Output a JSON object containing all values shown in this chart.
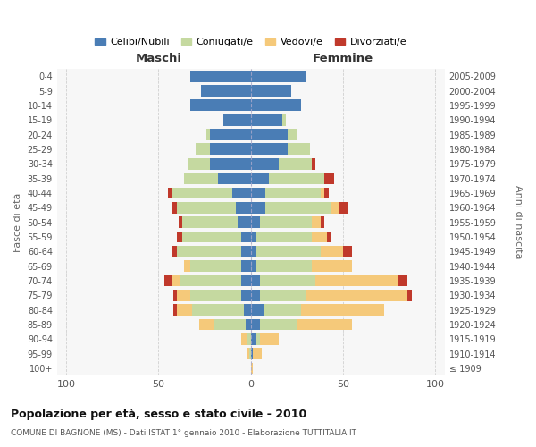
{
  "age_groups": [
    "100+",
    "95-99",
    "90-94",
    "85-89",
    "80-84",
    "75-79",
    "70-74",
    "65-69",
    "60-64",
    "55-59",
    "50-54",
    "45-49",
    "40-44",
    "35-39",
    "30-34",
    "25-29",
    "20-24",
    "15-19",
    "10-14",
    "5-9",
    "0-4"
  ],
  "birth_years": [
    "≤ 1909",
    "1910-1914",
    "1915-1919",
    "1920-1924",
    "1925-1929",
    "1930-1934",
    "1935-1939",
    "1940-1944",
    "1945-1949",
    "1950-1954",
    "1955-1959",
    "1960-1964",
    "1965-1969",
    "1970-1974",
    "1975-1979",
    "1980-1984",
    "1985-1989",
    "1990-1994",
    "1995-1999",
    "2000-2004",
    "2005-2009"
  ],
  "male_celibe": [
    0,
    0,
    0,
    3,
    4,
    5,
    5,
    5,
    5,
    5,
    7,
    8,
    10,
    18,
    22,
    22,
    22,
    15,
    33,
    27,
    33
  ],
  "male_coniugato": [
    0,
    1,
    2,
    17,
    28,
    28,
    33,
    28,
    35,
    32,
    30,
    32,
    33,
    18,
    12,
    8,
    2,
    0,
    0,
    0,
    0
  ],
  "male_vedovo": [
    0,
    1,
    3,
    8,
    8,
    7,
    5,
    3,
    0,
    0,
    0,
    0,
    0,
    0,
    0,
    0,
    0,
    0,
    0,
    0,
    0
  ],
  "male_divorziato": [
    0,
    0,
    0,
    0,
    2,
    2,
    4,
    0,
    3,
    3,
    2,
    3,
    2,
    0,
    0,
    0,
    0,
    0,
    0,
    0,
    0
  ],
  "female_celibe": [
    0,
    1,
    3,
    5,
    7,
    5,
    5,
    3,
    3,
    3,
    5,
    8,
    8,
    10,
    15,
    20,
    20,
    17,
    27,
    22,
    30
  ],
  "female_coniugata": [
    0,
    0,
    2,
    20,
    20,
    25,
    30,
    30,
    35,
    30,
    28,
    35,
    30,
    30,
    18,
    12,
    5,
    2,
    0,
    0,
    0
  ],
  "female_vedova": [
    1,
    5,
    10,
    30,
    45,
    55,
    45,
    22,
    12,
    8,
    5,
    5,
    2,
    0,
    0,
    0,
    0,
    0,
    0,
    0,
    0
  ],
  "female_divorziata": [
    0,
    0,
    0,
    0,
    0,
    2,
    5,
    0,
    5,
    2,
    2,
    5,
    2,
    5,
    2,
    0,
    0,
    0,
    0,
    0,
    0
  ],
  "color_celibe": "#4a7db5",
  "color_coniugato": "#c5d9a0",
  "color_vedovo": "#f5c97a",
  "color_divorziato": "#c0392b",
  "title": "Popolazione per età, sesso e stato civile - 2010",
  "subtitle": "COMUNE DI BAGNONE (MS) - Dati ISTAT 1° gennaio 2010 - Elaborazione TUTTITALIA.IT",
  "label_maschi": "Maschi",
  "label_femmine": "Femmine",
  "ylabel_left": "Fasce di età",
  "ylabel_right": "Anni di nascita",
  "xlim": 105,
  "legend_labels": [
    "Celibi/Nubili",
    "Coniugati/e",
    "Vedovi/e",
    "Divorziati/e"
  ],
  "bg_color": "#ffffff",
  "plot_bg": "#f7f7f7",
  "grid_color": "#cccccc"
}
